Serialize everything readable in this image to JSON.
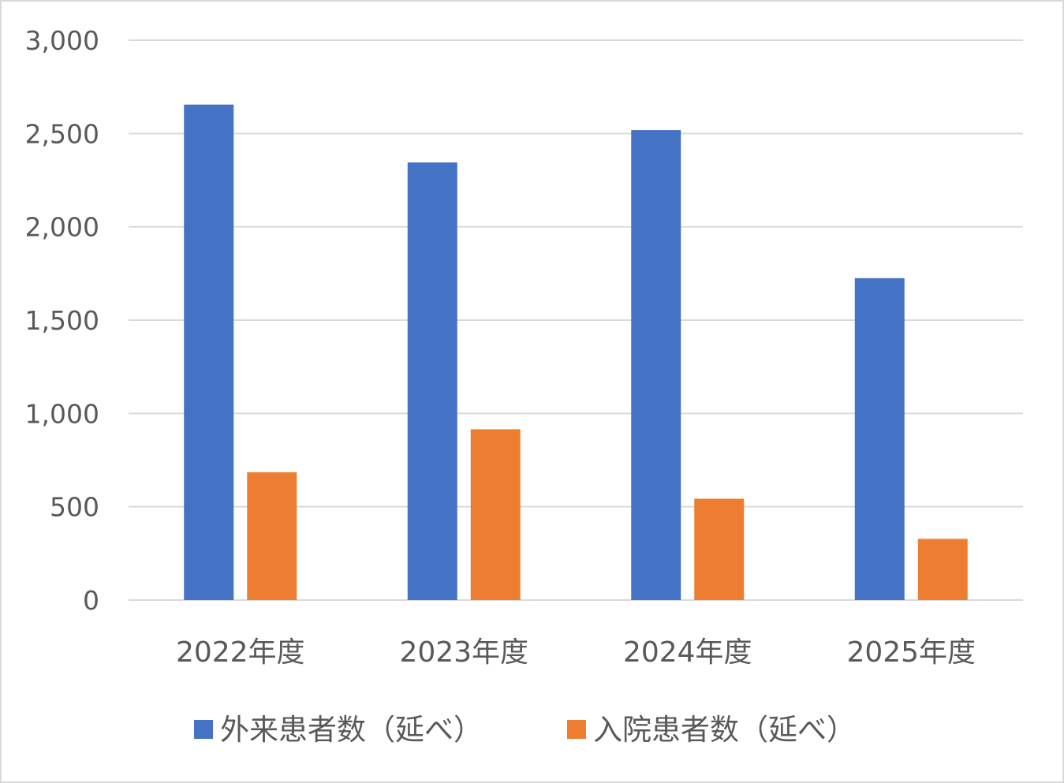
{
  "chart_data": {
    "type": "bar",
    "categories": [
      "2022年度",
      "2023年度",
      "2024年度",
      "2025年度"
    ],
    "series": [
      {
        "name": "外来患者数（延べ）",
        "color": "#4472c4",
        "values": [
          2655,
          2345,
          2518,
          1725
        ]
      },
      {
        "name": "入院患者数（延べ）",
        "color": "#ed7d31",
        "values": [
          685,
          915,
          543,
          328
        ]
      }
    ],
    "yticks": [
      0,
      500,
      1000,
      1500,
      2000,
      2500,
      3000
    ],
    "ytick_labels": [
      "0",
      "500",
      "1,000",
      "1,500",
      "2,000",
      "2,500",
      "3,000"
    ],
    "ylim": [
      0,
      3000
    ],
    "grid": true,
    "legend_position": "bottom",
    "title": "",
    "xlabel": "",
    "ylabel": ""
  }
}
